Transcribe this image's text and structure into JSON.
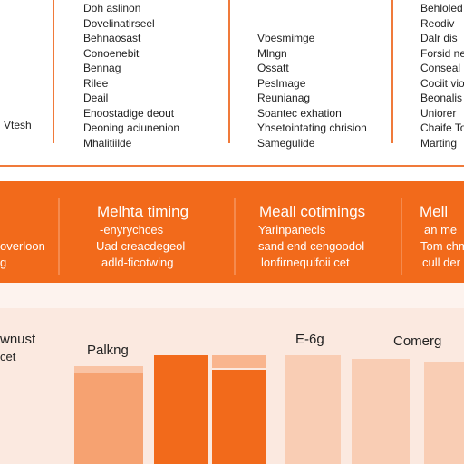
{
  "top": {
    "left_label": "Vtesh",
    "col1": [
      "Doh aslinon",
      "Dovelinatirseel",
      "Behnaosast",
      "Conoenebit",
      "Bennag",
      "Rilee",
      "Deail",
      "Enoostadige deout",
      "Deoning aciunenion",
      "Mhalitiilde"
    ],
    "col2": [
      "Vbesmimge",
      "Mlngn",
      "Ossatt",
      "Peslmage",
      "Reunianag",
      "Soantec exhation",
      "Yhsetointating chrision",
      "Samegulide"
    ],
    "col3": [
      "Behloled",
      "Reodiv",
      "Dalr dis",
      "Forsid ne",
      "Conseal",
      "Cociit vio",
      "Beonalis",
      "Uniorer",
      "Chaife To",
      "Marting"
    ]
  },
  "band": {
    "col1": {
      "title": "",
      "lines": [
        "overloon",
        "g"
      ]
    },
    "col2": {
      "title": "Melhta timing",
      "lines": [
        "-enyrychces",
        "Uad creacdegeol",
        "adld-ficotwing"
      ]
    },
    "col3": {
      "title": "Meall cotimings",
      "lines": [
        "Yarinpanecls",
        "sand end cengoodol",
        "lonfirnequifoii cet"
      ]
    },
    "col4": {
      "title": "Mell",
      "lines": [
        "an me",
        "Tom chm",
        "cull der"
      ]
    }
  },
  "bottom": {
    "label_left": "wnust",
    "label_left2": "cet",
    "label_bars": "Palkng",
    "label_mid": "E-6g",
    "label_right": "Comerg"
  },
  "chart_data": {
    "type": "bar",
    "categories": [
      "Palkng",
      "",
      "",
      "E-6g",
      "",
      "Comerg"
    ],
    "values": [
      0.54,
      0.6,
      0.52,
      0.6,
      0.58,
      0.56
    ],
    "colors": [
      "#f6a271",
      "#f26a1b",
      "#f26a1b",
      "#f9cdb4",
      "#f9cdb4",
      "#f9cdb4"
    ]
  }
}
